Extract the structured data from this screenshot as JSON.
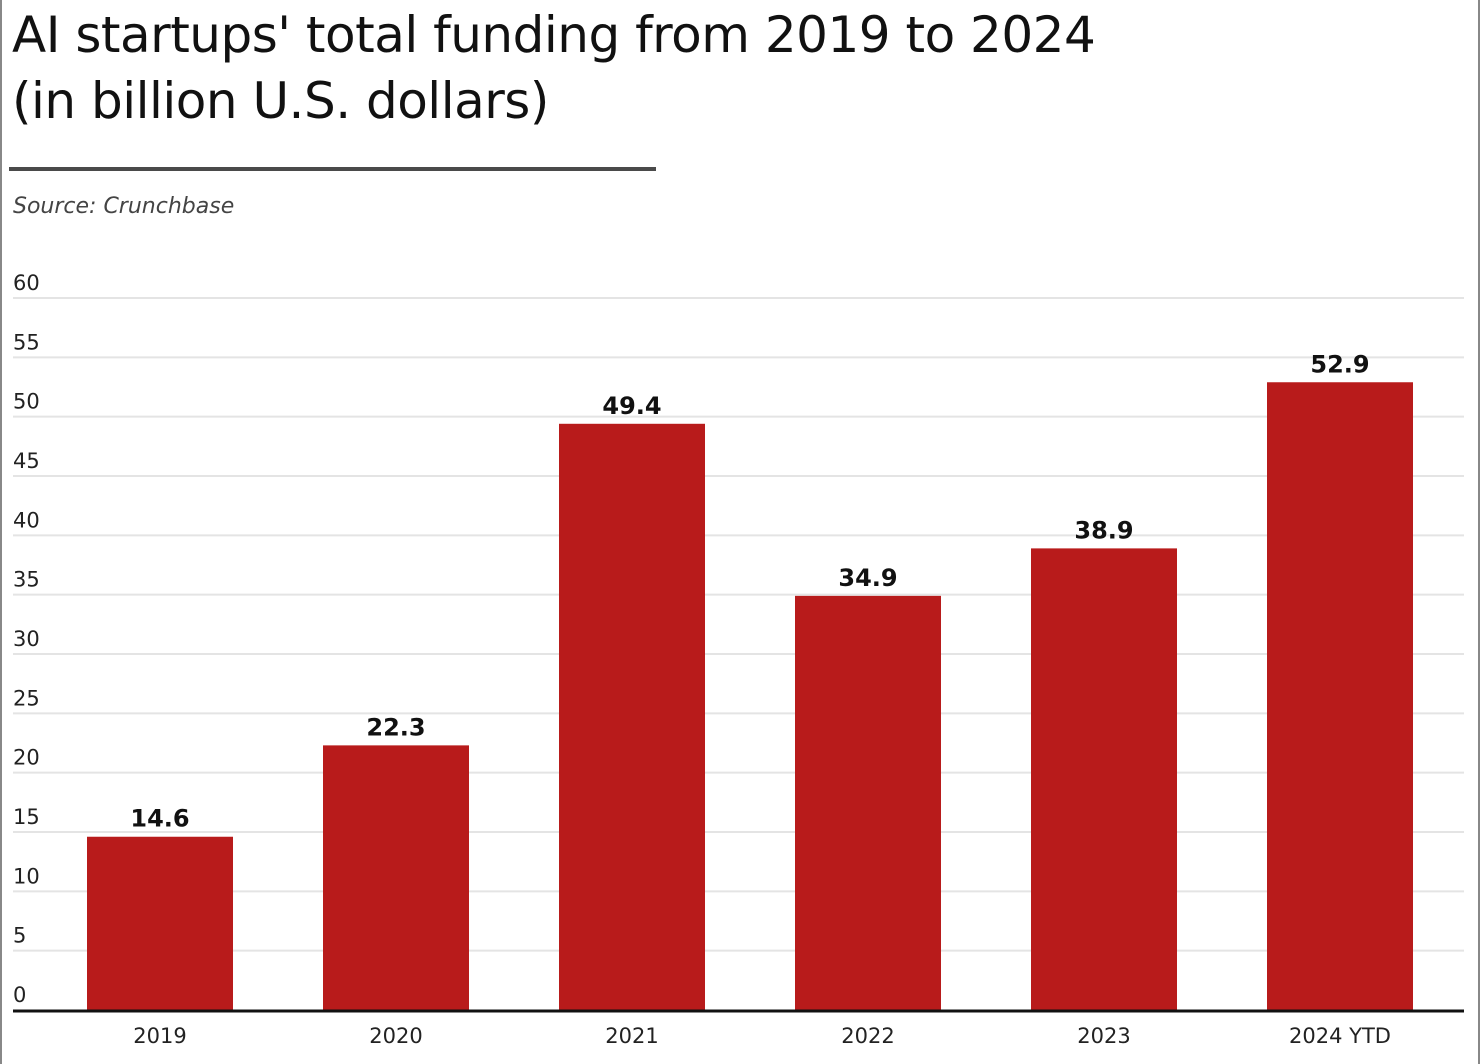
{
  "header": {
    "title_line1": "AI startups' total funding from 2019 to 2024",
    "title_line2": "(in billion U.S. dollars)",
    "source": "Source: Crunchbase"
  },
  "colors": {
    "bar": "#b81b1b",
    "grid": "#e4e4e4",
    "axis": "#111111"
  },
  "chart_data": {
    "type": "bar",
    "title": "AI startups' total funding from 2019 to 2024 (in billion U.S. dollars)",
    "xlabel": "",
    "ylabel": "",
    "categories": [
      "2019",
      "2020",
      "2021",
      "2022",
      "2023",
      "2024 YTD"
    ],
    "values": [
      14.6,
      22.3,
      49.4,
      34.9,
      38.9,
      52.9
    ],
    "value_labels": [
      "14.6",
      "22.3",
      "49.4",
      "34.9",
      "38.9",
      "52.9"
    ],
    "ylim": [
      0,
      60
    ],
    "yticks": [
      0,
      5,
      10,
      15,
      20,
      25,
      30,
      35,
      40,
      45,
      50,
      55,
      60
    ],
    "ytick_labels": [
      "0",
      "5",
      "10",
      "15",
      "20",
      "25",
      "30",
      "35",
      "40",
      "45",
      "50",
      "55",
      "60"
    ],
    "grid": true,
    "legend": "none"
  }
}
